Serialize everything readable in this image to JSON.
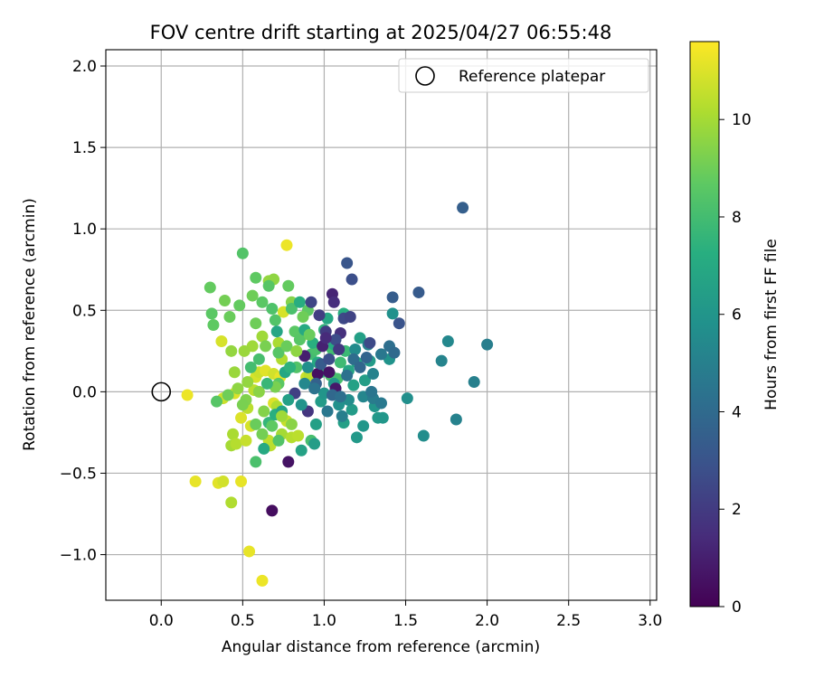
{
  "chart_data": {
    "type": "scatter",
    "title": "FOV centre drift starting at 2025/04/27 06:55:48",
    "xlabel": "Angular distance from reference (arcmin)",
    "ylabel": "Rotation from reference (arcmin)",
    "xlim": [
      -0.34,
      3.04
    ],
    "ylim": [
      -1.28,
      2.1
    ],
    "xticks": [
      0.0,
      0.5,
      1.0,
      1.5,
      2.0,
      2.5,
      3.0
    ],
    "xtick_labels": [
      "0.0",
      "0.5",
      "1.0",
      "1.5",
      "2.0",
      "2.5",
      "3.0"
    ],
    "yticks": [
      -1.0,
      -0.5,
      0.0,
      0.5,
      1.0,
      1.5,
      2.0
    ],
    "ytick_labels": [
      "−1.0",
      "−0.5",
      "0.0",
      "0.5",
      "1.0",
      "1.5",
      "2.0"
    ],
    "grid": true,
    "legend": {
      "position": "upper right",
      "entries": [
        {
          "label": "Reference platepar",
          "marker": "open-circle"
        }
      ]
    },
    "reference_point": {
      "x": 0.0,
      "y": 0.0
    },
    "colorbar": {
      "label": "Hours from first FF file",
      "colormap": "viridis",
      "range": [
        0,
        11.6
      ],
      "ticks": [
        0,
        2,
        4,
        6,
        8,
        10
      ],
      "tick_labels": [
        "0",
        "2",
        "4",
        "6",
        "8",
        "10"
      ]
    },
    "points": [
      [
        0.16,
        -0.02,
        11.3
      ],
      [
        0.21,
        -0.55,
        11.2
      ],
      [
        0.35,
        -0.56,
        11.1
      ],
      [
        0.38,
        -0.55,
        10.8
      ],
      [
        0.37,
        0.31,
        10.9
      ],
      [
        0.38,
        -0.04,
        10.7
      ],
      [
        0.43,
        -0.68,
        10.2
      ],
      [
        0.43,
        -0.33,
        10.0
      ],
      [
        0.44,
        -0.26,
        10.1
      ],
      [
        0.46,
        -0.32,
        10.3
      ],
      [
        0.45,
        -0.01,
        11.0
      ],
      [
        0.49,
        -0.55,
        11.2
      ],
      [
        0.49,
        -0.16,
        11.0
      ],
      [
        0.52,
        -0.3,
        10.6
      ],
      [
        0.53,
        -0.1,
        10.4
      ],
      [
        0.54,
        -0.98,
        11.2
      ],
      [
        0.55,
        -0.21,
        10.9
      ],
      [
        0.57,
        0.01,
        10.4
      ],
      [
        0.58,
        0.09,
        10.9
      ],
      [
        0.6,
        0.12,
        10.7
      ],
      [
        0.62,
        -1.16,
        11.3
      ],
      [
        0.64,
        0.13,
        11.1
      ],
      [
        0.66,
        -0.3,
        10.5
      ],
      [
        0.67,
        -0.33,
        10.4
      ],
      [
        0.69,
        0.11,
        10.8
      ],
      [
        0.69,
        -0.07,
        11.0
      ],
      [
        0.71,
        -0.09,
        10.2
      ],
      [
        0.73,
        0.09,
        11.2
      ],
      [
        0.74,
        -0.26,
        10.0
      ],
      [
        0.75,
        0.49,
        10.9
      ],
      [
        0.77,
        0.9,
        11.3
      ],
      [
        0.77,
        -0.18,
        10.6
      ],
      [
        0.8,
        -0.28,
        10.3
      ],
      [
        0.84,
        -0.27,
        10.4
      ],
      [
        0.86,
        0.34,
        11.2
      ],
      [
        0.89,
        0.09,
        10.7
      ],
      [
        0.91,
        0.1,
        10.4
      ],
      [
        0.74,
        0.2,
        10.2
      ],
      [
        0.72,
        0.3,
        10.1
      ],
      [
        0.56,
        0.28,
        9.9
      ],
      [
        0.51,
        0.25,
        9.8
      ],
      [
        0.62,
        0.34,
        9.9
      ],
      [
        0.45,
        0.12,
        9.8
      ],
      [
        0.43,
        0.25,
        9.7
      ],
      [
        0.66,
        0.68,
        9.7
      ],
      [
        0.69,
        0.69,
        9.6
      ],
      [
        0.8,
        0.55,
        9.4
      ],
      [
        0.3,
        0.64,
        8.8
      ],
      [
        0.31,
        0.48,
        8.6
      ],
      [
        0.32,
        0.41,
        8.7
      ],
      [
        0.34,
        -0.06,
        8.5
      ],
      [
        0.39,
        0.56,
        9.1
      ],
      [
        0.42,
        0.46,
        8.9
      ],
      [
        0.48,
        0.53,
        8.8
      ],
      [
        0.5,
        0.85,
        8.4
      ],
      [
        0.56,
        0.59,
        9.0
      ],
      [
        0.58,
        0.7,
        8.7
      ],
      [
        0.58,
        0.42,
        9.0
      ],
      [
        0.58,
        -0.43,
        8.2
      ],
      [
        0.62,
        0.55,
        8.6
      ],
      [
        0.66,
        0.65,
        8.5
      ],
      [
        0.68,
        0.51,
        8.3
      ],
      [
        0.7,
        0.44,
        8.4
      ],
      [
        0.72,
        0.24,
        8.5
      ],
      [
        0.72,
        0.05,
        8.6
      ],
      [
        0.78,
        0.65,
        8.8
      ],
      [
        0.8,
        0.51,
        8.2
      ],
      [
        0.82,
        0.37,
        8.6
      ],
      [
        0.83,
        0.15,
        8.4
      ],
      [
        0.85,
        0.32,
        8.5
      ],
      [
        0.9,
        0.5,
        8.7
      ],
      [
        0.92,
        0.23,
        8.0
      ],
      [
        0.95,
        0.26,
        8.2
      ],
      [
        0.92,
        -0.3,
        8.1
      ],
      [
        1.04,
        0.1,
        8.3
      ],
      [
        1.05,
        0.26,
        8.0
      ],
      [
        1.08,
        0.08,
        8.1
      ],
      [
        0.98,
        0.12,
        7.6
      ],
      [
        1.1,
        0.18,
        7.9
      ],
      [
        1.13,
        0.25,
        7.8
      ],
      [
        1.0,
        0.38,
        7.5
      ],
      [
        0.52,
        -0.05,
        9.3
      ],
      [
        0.6,
        0.0,
        9.5
      ],
      [
        0.63,
        -0.12,
        9.4
      ],
      [
        0.7,
        0.03,
        9.2
      ],
      [
        0.85,
        0.55,
        7.2
      ],
      [
        0.88,
        0.38,
        7.0
      ],
      [
        0.93,
        0.3,
        7.3
      ],
      [
        0.96,
        0.18,
        7.1
      ],
      [
        1.02,
        0.45,
        6.9
      ],
      [
        1.06,
        0.29,
        7.0
      ],
      [
        1.12,
        0.48,
        7.2
      ],
      [
        1.15,
        0.13,
        6.8
      ],
      [
        1.18,
        0.04,
        6.6
      ],
      [
        1.2,
        0.18,
        6.7
      ],
      [
        1.22,
        0.33,
        6.5
      ],
      [
        1.25,
        0.07,
        6.4
      ],
      [
        1.12,
        -0.19,
        6.5
      ],
      [
        1.17,
        -0.11,
        6.3
      ],
      [
        1.2,
        -0.28,
        6.2
      ],
      [
        1.24,
        -0.21,
        6.1
      ],
      [
        1.28,
        0.19,
        6.3
      ],
      [
        1.31,
        -0.09,
        6.0
      ],
      [
        1.33,
        -0.16,
        6.2
      ],
      [
        1.36,
        -0.16,
        6.1
      ],
      [
        1.4,
        0.2,
        5.9
      ],
      [
        1.42,
        0.48,
        5.8
      ],
      [
        1.51,
        -0.04,
        5.7
      ],
      [
        1.61,
        -0.27,
        5.6
      ],
      [
        1.76,
        0.31,
        5.4
      ],
      [
        1.72,
        0.19,
        5.2
      ],
      [
        1.81,
        -0.17,
        5.1
      ],
      [
        1.92,
        0.06,
        5.0
      ],
      [
        2.0,
        0.29,
        4.9
      ],
      [
        0.86,
        -0.36,
        6.6
      ],
      [
        0.94,
        -0.32,
        6.4
      ],
      [
        0.95,
        -0.2,
        6.5
      ],
      [
        0.98,
        -0.06,
        6.3
      ],
      [
        1.0,
        -0.01,
        6.0
      ],
      [
        1.06,
        0.05,
        6.2
      ],
      [
        1.09,
        -0.08,
        5.8
      ],
      [
        1.15,
        -0.05,
        5.6
      ],
      [
        1.19,
        0.26,
        5.5
      ],
      [
        1.24,
        -0.03,
        5.3
      ],
      [
        1.27,
        0.29,
        5.0
      ],
      [
        1.3,
        -0.04,
        4.8
      ],
      [
        1.35,
        0.23,
        4.6
      ],
      [
        1.4,
        0.28,
        4.2
      ],
      [
        1.43,
        0.24,
        4.0
      ],
      [
        1.3,
        0.11,
        5.1
      ],
      [
        0.92,
        0.55,
        2.4
      ],
      [
        0.97,
        0.47,
        2.1
      ],
      [
        1.01,
        0.37,
        2.0
      ],
      [
        1.05,
        0.6,
        1.2
      ],
      [
        1.06,
        0.55,
        1.5
      ],
      [
        1.1,
        0.36,
        1.6
      ],
      [
        1.12,
        0.45,
        2.5
      ],
      [
        1.14,
        0.79,
        3.1
      ],
      [
        1.17,
        0.69,
        2.8
      ],
      [
        1.16,
        0.46,
        2.3
      ],
      [
        1.42,
        0.58,
        3.4
      ],
      [
        1.46,
        0.42,
        3.0
      ],
      [
        1.58,
        0.61,
        3.3
      ],
      [
        1.85,
        1.13,
        3.5
      ],
      [
        1.28,
        0.3,
        2.6
      ],
      [
        1.03,
        0.12,
        0.6
      ],
      [
        1.07,
        0.02,
        0.8
      ],
      [
        0.96,
        0.11,
        0.5
      ],
      [
        0.88,
        0.22,
        1.0
      ],
      [
        0.99,
        0.28,
        1.1
      ],
      [
        0.78,
        -0.43,
        0.6
      ],
      [
        0.68,
        -0.73,
        0.4
      ],
      [
        0.9,
        -0.12,
        1.8
      ],
      [
        0.82,
        -0.01,
        2.2
      ],
      [
        0.95,
        0.05,
        3.6
      ],
      [
        0.76,
        0.12,
        6.9
      ],
      [
        0.79,
        0.15,
        7.4
      ],
      [
        0.65,
        0.05,
        7.7
      ],
      [
        0.6,
        0.2,
        8.1
      ],
      [
        0.55,
        0.15,
        8.0
      ],
      [
        0.66,
        -0.19,
        7.6
      ],
      [
        0.7,
        -0.14,
        7.3
      ],
      [
        0.74,
        -0.12,
        6.7
      ],
      [
        0.78,
        -0.05,
        6.5
      ],
      [
        0.86,
        -0.08,
        5.9
      ],
      [
        0.88,
        0.05,
        5.4
      ],
      [
        0.9,
        0.15,
        5.7
      ],
      [
        0.94,
        0.02,
        4.4
      ],
      [
        0.63,
        -0.35,
        7.0
      ],
      [
        0.71,
        0.37,
        6.8
      ],
      [
        0.77,
        0.28,
        8.9
      ],
      [
        0.83,
        0.25,
        9.6
      ],
      [
        0.87,
        0.46,
        9.0
      ],
      [
        0.91,
        0.35,
        8.9
      ],
      [
        0.64,
        0.28,
        9.2
      ],
      [
        0.53,
        0.06,
        9.7
      ],
      [
        0.47,
        0.02,
        9.6
      ],
      [
        0.5,
        -0.08,
        9.2
      ],
      [
        0.41,
        -0.02,
        9.0
      ],
      [
        0.58,
        -0.2,
        8.9
      ],
      [
        0.62,
        -0.26,
        9.1
      ],
      [
        0.68,
        -0.21,
        8.7
      ],
      [
        0.72,
        -0.3,
        8.4
      ],
      [
        0.74,
        -0.15,
        9.9
      ],
      [
        0.8,
        -0.2,
        9.5
      ],
      [
        1.02,
        -0.12,
        4.6
      ],
      [
        1.05,
        -0.02,
        3.9
      ],
      [
        1.1,
        -0.03,
        4.2
      ],
      [
        1.14,
        0.1,
        4.3
      ],
      [
        1.18,
        0.2,
        4.1
      ],
      [
        1.22,
        0.15,
        3.8
      ],
      [
        1.26,
        0.21,
        3.7
      ],
      [
        1.29,
        0.0,
        4.5
      ],
      [
        1.35,
        -0.07,
        4.7
      ],
      [
        1.11,
        -0.15,
        4.9
      ],
      [
        0.98,
        0.17,
        3.3
      ],
      [
        1.03,
        0.2,
        2.8
      ],
      [
        1.07,
        0.32,
        2.7
      ],
      [
        1.09,
        0.26,
        1.9
      ],
      [
        1.01,
        0.33,
        1.4
      ]
    ]
  }
}
